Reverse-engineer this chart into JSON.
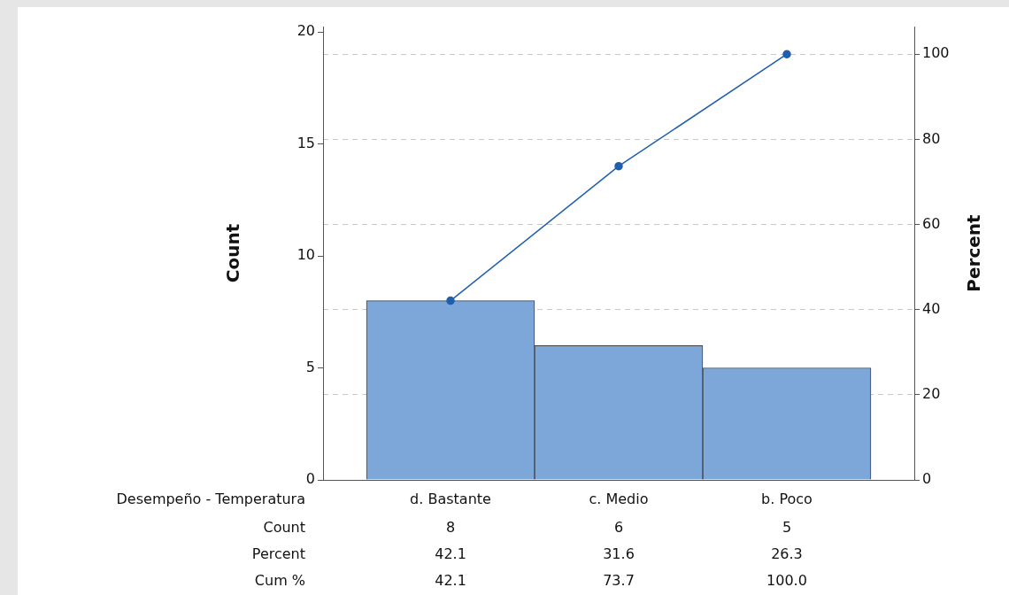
{
  "chart_data": {
    "type": "bar",
    "xlabel": "Desempeño - Temperatura",
    "ylabel": "Count",
    "y2label": "Percent",
    "categories": [
      "d. Bastante",
      "c. Medio",
      "b. Poco"
    ],
    "series": [
      {
        "color": "#7da7d9",
        "values": [
          8,
          6,
          5
        ]
      },
      {
        "type": "line",
        "axis": "y2",
        "color": "#1f5fae",
        "values": [
          42.1,
          73.7,
          100.0
        ]
      }
    ],
    "ylim": [
      0,
      20.24
    ],
    "yticks": [
      0,
      5,
      10,
      15,
      20
    ],
    "y2lim": [
      0,
      106.5
    ],
    "y2ticks": [
      0,
      20,
      40,
      60,
      80,
      100
    ],
    "grid": "y2",
    "marker": "circle",
    "annotations": [
      "Count",
      "8",
      "6",
      "5",
      "Percent",
      "42.1",
      "31.6",
      "26.3",
      "Cum %",
      "42.1",
      "73.7",
      "100.0"
    ]
  }
}
